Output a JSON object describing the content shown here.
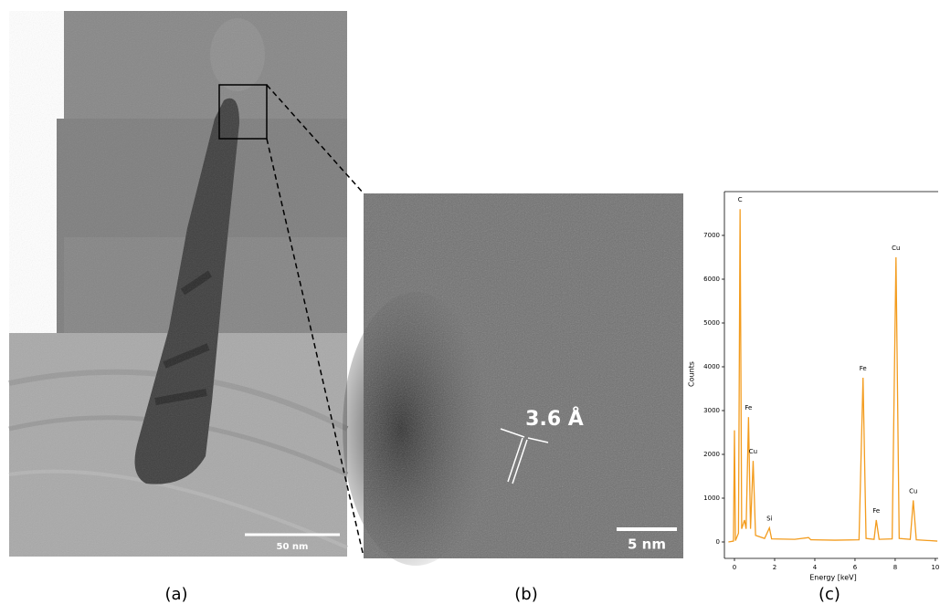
{
  "panels": {
    "a": {
      "label": "(a)",
      "scale_bar": "50 nm"
    },
    "b": {
      "label": "(b)",
      "scale_bar": "5 nm",
      "annotation": "3.6 Å"
    },
    "c": {
      "label": "(c)"
    }
  },
  "chart_data": {
    "type": "line",
    "xlabel": "Energy [keV]",
    "ylabel": "Counts",
    "x": [
      -0.3,
      -0.05,
      0,
      0.05,
      0.2,
      0.28,
      0.36,
      0.5,
      0.58,
      0.7,
      0.8,
      0.93,
      1.05,
      1.5,
      1.74,
      1.85,
      3,
      3.69,
      3.8,
      5,
      6.2,
      6.4,
      6.55,
      6.95,
      7.06,
      7.2,
      7.85,
      8.04,
      8.2,
      8.75,
      8.9,
      9.05,
      10.1
    ],
    "series": [
      {
        "name": "Counts",
        "color": "#f39c1e",
        "values": [
          0,
          20,
          2550,
          30,
          200,
          7600,
          300,
          500,
          300,
          2850,
          300,
          1850,
          150,
          80,
          320,
          70,
          60,
          100,
          50,
          40,
          50,
          3750,
          80,
          60,
          500,
          60,
          70,
          6500,
          80,
          60,
          950,
          50,
          20
        ]
      }
    ],
    "annotations": [
      {
        "text": "C",
        "x": 0.28,
        "y": 7600
      },
      {
        "text": "Fe",
        "x": 0.7,
        "y": 2850
      },
      {
        "text": "Cu",
        "x": 0.93,
        "y": 1850
      },
      {
        "text": "Si",
        "x": 1.74,
        "y": 320
      },
      {
        "text": "Fe",
        "x": 6.4,
        "y": 3750
      },
      {
        "text": "Fe",
        "x": 7.06,
        "y": 500
      },
      {
        "text": "Cu",
        "x": 8.04,
        "y": 6500
      },
      {
        "text": "Cu",
        "x": 8.9,
        "y": 950
      }
    ],
    "xlim": [
      -0.5,
      10.14
    ],
    "ylim": [
      -375,
      8000
    ],
    "xticks": [
      0,
      2,
      4,
      6,
      8,
      10
    ],
    "yticks": [
      0,
      1000,
      2000,
      3000,
      4000,
      5000,
      6000,
      7000
    ]
  }
}
